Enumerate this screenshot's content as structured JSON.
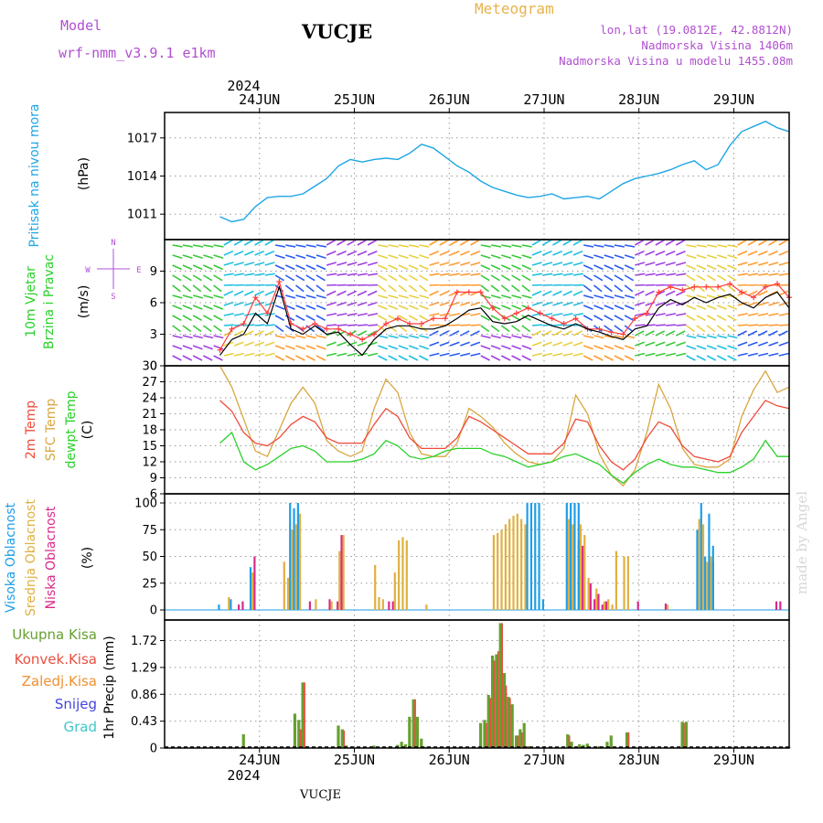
{
  "header": {
    "model_label": "Model",
    "model_name": "wrf-nmm_v3.9.1 e1km",
    "station": "VUCJE",
    "meteogram": "Meteogram",
    "coords": "lon,lat (19.0812E, 42.8812N)",
    "altitude": "Nadmorska Visina 1406m",
    "model_altitude": "Nadmorska Visina u modelu 1455.08m"
  },
  "footer": {
    "station": "VUCJE",
    "credit": "made by Angel"
  },
  "colors": {
    "pressure": "#1ea6e6",
    "wind_speed": "#000000",
    "wind_gust": "#ff3c3c",
    "t2m": "#f04a3a",
    "sfc": "#d9a640",
    "dew": "#2ad12a",
    "cloud_high": "#1e9ee8",
    "cloud_mid": "#e0b040",
    "cloud_low": "#d82a8a",
    "precip_total": "#66a030",
    "precip_conv": "#e85040",
    "precip_strat": "#f09030",
    "snow": "#4444dd",
    "hail": "#40c8c8",
    "purple": "#b04fd0"
  },
  "chart_data": [
    {
      "type": "line",
      "title": "",
      "ylabel": "Pritisak na nivou mora",
      "unit": "(hPa)",
      "days": [
        "24JUN",
        "25JUN",
        "26JUN",
        "27JUN",
        "28JUN",
        "29JUN"
      ],
      "year": "2024",
      "ylim": [
        1009,
        1019
      ],
      "yticks": [
        "1011",
        "1014",
        "1017"
      ],
      "x_hours": [
        0,
        3,
        6,
        9,
        12,
        15,
        18,
        21,
        24,
        27,
        30,
        33,
        36,
        39,
        42,
        45,
        48,
        51,
        54,
        57,
        60,
        63,
        66,
        69,
        72,
        75,
        78,
        81,
        84,
        87,
        90,
        93,
        96,
        99,
        102,
        105,
        108,
        111,
        114,
        117,
        120,
        123,
        126,
        129,
        132,
        135,
        138,
        141,
        144
      ],
      "series": [
        {
          "name": "Pritisak na nivou mora",
          "values": [
            1010.8,
            1010.4,
            1010.6,
            1011.6,
            1012.3,
            1012.4,
            1012.4,
            1012.6,
            1013.2,
            1013.8,
            1014.8,
            1015.3,
            1015.1,
            1015.3,
            1015.4,
            1015.3,
            1015.8,
            1016.5,
            1016.2,
            1015.5,
            1014.8,
            1014.3,
            1013.6,
            1013.1,
            1012.8,
            1012.5,
            1012.3,
            1012.4,
            1012.6,
            1012.2,
            1012.3,
            1012.4,
            1012.2,
            1012.8,
            1013.4,
            1013.8,
            1014.0,
            1014.2,
            1014.5,
            1014.9,
            1015.2,
            1014.5,
            1014.9,
            1016.4,
            1017.5,
            1017.9,
            1018.3,
            1017.8,
            1017.5
          ]
        }
      ]
    },
    {
      "type": "line",
      "title": "",
      "ylabel": "10m Vjetar Brzina i Pravac",
      "unit": "(m/s)",
      "compass": [
        "N",
        "W",
        "E",
        "S"
      ],
      "ylim": [
        0,
        12
      ],
      "yticks": [
        "0",
        "3",
        "6",
        "9"
      ],
      "x_hours": [
        0,
        3,
        6,
        9,
        12,
        15,
        18,
        21,
        24,
        27,
        30,
        33,
        36,
        39,
        42,
        45,
        48,
        51,
        54,
        57,
        60,
        63,
        66,
        69,
        72,
        75,
        78,
        81,
        84,
        87,
        90,
        93,
        96,
        99,
        102,
        105,
        108,
        111,
        114,
        117,
        120,
        123,
        126,
        129,
        132,
        135,
        138,
        141,
        144
      ],
      "series": [
        {
          "name": "wind speed",
          "values": [
            1.0,
            2.5,
            3.0,
            5.0,
            4.0,
            7.5,
            3.5,
            3.0,
            3.8,
            3.0,
            3.2,
            2.0,
            1.0,
            2.5,
            3.5,
            3.8,
            3.8,
            3.5,
            3.5,
            3.8,
            4.5,
            5.3,
            5.5,
            4.2,
            4.0,
            4.2,
            4.8,
            4.3,
            3.8,
            3.5,
            4.0,
            3.5,
            3.2,
            2.8,
            2.5,
            3.5,
            3.8,
            5.5,
            6.3,
            5.8,
            6.5,
            6.0,
            6.5,
            6.8,
            6.0,
            5.5,
            6.5,
            7.0,
            5.5
          ]
        },
        {
          "name": "wind gust",
          "values": [
            1.5,
            3.5,
            4.0,
            6.5,
            5.0,
            8.0,
            4.0,
            3.5,
            4.0,
            3.5,
            3.5,
            3.0,
            2.5,
            3.0,
            4.0,
            4.5,
            4.0,
            4.0,
            4.5,
            4.5,
            7.0,
            7.0,
            7.0,
            5.5,
            4.5,
            5.0,
            5.5,
            5.0,
            4.5,
            4.0,
            4.5,
            3.5,
            3.5,
            3.2,
            3.0,
            4.5,
            5.0,
            7.0,
            7.5,
            7.2,
            7.5,
            7.5,
            7.5,
            7.8,
            7.0,
            6.5,
            7.5,
            7.8,
            6.5
          ]
        }
      ]
    },
    {
      "type": "line",
      "title": "",
      "ylabel_lines": [
        "2m Temp",
        "SFC Temp",
        "dewpt Temp"
      ],
      "unit": "(C)",
      "ylim": [
        6,
        30
      ],
      "yticks": [
        "6",
        "9",
        "12",
        "15",
        "18",
        "21",
        "24",
        "27",
        "30"
      ],
      "x_hours": [
        0,
        3,
        6,
        9,
        12,
        15,
        18,
        21,
        24,
        27,
        30,
        33,
        36,
        39,
        42,
        45,
        48,
        51,
        54,
        57,
        60,
        63,
        66,
        69,
        72,
        75,
        78,
        81,
        84,
        87,
        90,
        93,
        96,
        99,
        102,
        105,
        108,
        111,
        114,
        117,
        120,
        123,
        126,
        129,
        132,
        135,
        138,
        141,
        144
      ],
      "series": [
        {
          "name": "2m Temp",
          "values": [
            23.5,
            21.5,
            17.5,
            15.5,
            15.0,
            16.5,
            19.0,
            20.5,
            19.5,
            16.5,
            15.5,
            15.5,
            15.5,
            19.0,
            22.0,
            20.5,
            16.5,
            14.5,
            14.5,
            14.5,
            16.5,
            20.5,
            19.5,
            18.0,
            16.5,
            15.0,
            13.5,
            13.5,
            13.5,
            15.5,
            20.0,
            19.5,
            15.0,
            12.0,
            10.5,
            12.5,
            16.5,
            19.5,
            18.5,
            15.0,
            13.0,
            12.5,
            12.0,
            13.0,
            17.5,
            20.5,
            23.5,
            22.5,
            22.0
          ]
        },
        {
          "name": "SFC Temp",
          "values": [
            30.0,
            26.0,
            20.0,
            14.0,
            13.0,
            18.0,
            23.0,
            26.0,
            23.0,
            16.0,
            14.0,
            13.0,
            14.0,
            22.0,
            27.5,
            25.0,
            17.5,
            13.5,
            13.0,
            13.0,
            15.5,
            22.0,
            20.5,
            18.5,
            15.5,
            13.5,
            12.0,
            11.5,
            12.0,
            14.5,
            24.5,
            21.0,
            13.5,
            9.5,
            7.5,
            10.5,
            17.5,
            26.5,
            22.0,
            14.5,
            11.5,
            11.0,
            11.0,
            12.5,
            20.5,
            25.5,
            29.0,
            25.0,
            26.0
          ]
        },
        {
          "name": "dewpt Temp",
          "values": [
            15.5,
            17.5,
            12.0,
            10.5,
            11.5,
            13.0,
            14.5,
            15.0,
            14.0,
            12.0,
            12.0,
            12.0,
            12.5,
            13.5,
            16.0,
            15.0,
            13.0,
            12.5,
            13.0,
            14.0,
            14.5,
            14.5,
            14.5,
            13.5,
            13.0,
            12.0,
            11.0,
            11.5,
            12.0,
            13.0,
            13.5,
            12.5,
            11.5,
            9.5,
            8.0,
            10.0,
            11.5,
            12.5,
            11.5,
            11.0,
            11.0,
            10.5,
            10.0,
            10.0,
            11.0,
            12.5,
            16.0,
            13.0,
            13.0
          ]
        }
      ]
    },
    {
      "type": "bar",
      "title": "",
      "ylabel_lines": [
        "Visoka Oblacnost",
        "Srednja Oblacnost",
        "Niska Oblacnost"
      ],
      "unit": "(%)",
      "ylim": [
        0,
        100
      ],
      "yticks": [
        "0",
        "25",
        "50",
        "75",
        "100"
      ],
      "x_hours": [
        0,
        2,
        3,
        4,
        5,
        8,
        14,
        16,
        17,
        18,
        19,
        20,
        22,
        24,
        27,
        28,
        29,
        30,
        31,
        35,
        39,
        40,
        41,
        42,
        43,
        44,
        45,
        46,
        47,
        52,
        69,
        70,
        71,
        72,
        73,
        74,
        75,
        76,
        77,
        78,
        79,
        80,
        81,
        82,
        83,
        84,
        88,
        89,
        90,
        91,
        92,
        93,
        94,
        95,
        96,
        97,
        98,
        99,
        100,
        102,
        103,
        105,
        112,
        113,
        120,
        121,
        122,
        123,
        124,
        125,
        126,
        140,
        141
      ],
      "series": [
        {
          "name": "Visoka Oblacnost",
          "values": [
            5,
            0,
            10,
            0,
            0,
            40,
            0,
            0,
            0,
            100,
            95,
            100,
            0,
            0,
            0,
            0,
            0,
            0,
            0,
            0,
            0,
            0,
            0,
            0,
            0,
            0,
            0,
            0,
            0,
            0,
            0,
            0,
            0,
            0,
            0,
            0,
            0,
            0,
            0,
            100,
            100,
            100,
            100,
            10,
            0,
            0,
            100,
            100,
            100,
            100,
            0,
            0,
            0,
            0,
            0,
            0,
            0,
            0,
            0,
            0,
            0,
            0,
            0,
            0,
            0,
            75,
            100,
            50,
            90,
            60,
            0,
            0,
            0
          ]
        },
        {
          "name": "Srednja Oblacnost",
          "values": [
            0,
            12,
            0,
            0,
            0,
            35,
            0,
            45,
            30,
            75,
            80,
            90,
            0,
            10,
            0,
            8,
            0,
            55,
            70,
            0,
            42,
            12,
            10,
            0,
            0,
            35,
            65,
            68,
            65,
            5,
            70,
            72,
            75,
            80,
            85,
            88,
            90,
            85,
            80,
            0,
            0,
            0,
            0,
            0,
            0,
            0,
            85,
            80,
            0,
            80,
            70,
            30,
            0,
            20,
            0,
            8,
            10,
            5,
            55,
            50,
            50,
            0,
            0,
            5,
            0,
            85,
            80,
            45,
            50,
            0,
            0,
            0,
            0
          ]
        },
        {
          "name": "Niska Oblacnost",
          "values": [
            0,
            0,
            0,
            5,
            8,
            50,
            0,
            0,
            0,
            0,
            0,
            0,
            8,
            0,
            10,
            0,
            8,
            70,
            0,
            0,
            0,
            0,
            0,
            8,
            8,
            0,
            0,
            0,
            0,
            0,
            0,
            0,
            0,
            0,
            0,
            0,
            0,
            0,
            0,
            0,
            0,
            0,
            0,
            0,
            0,
            0,
            10,
            0,
            65,
            60,
            0,
            25,
            10,
            15,
            5,
            8,
            0,
            0,
            0,
            0,
            0,
            8,
            6,
            0,
            8,
            0,
            0,
            0,
            45,
            0,
            0,
            8,
            8
          ]
        }
      ]
    },
    {
      "type": "bar",
      "title": "",
      "legend": [
        "Ukupna Kisa",
        "Konvek.Kisa",
        "Zaledj.Kisa",
        "Snijeg",
        "Grad"
      ],
      "unit": "1hr Precip (mm)",
      "ylim": [
        0,
        2.05
      ],
      "yticks": [
        "0",
        "0.43",
        "0.86",
        "1.29",
        "1.72"
      ],
      "x_hours": [
        6,
        19,
        20,
        21,
        22,
        30,
        31,
        32,
        39,
        43,
        45,
        46,
        47,
        48,
        49,
        50,
        51,
        52,
        66,
        67,
        68,
        69,
        70,
        71,
        72,
        73,
        74,
        75,
        76,
        77,
        78,
        88,
        89,
        91,
        92,
        93,
        96,
        98,
        99,
        103,
        117,
        118,
        144
      ],
      "series": [
        {
          "name": "Ukupna Kisa",
          "values": [
            0.22,
            0.55,
            0.45,
            1.05,
            0.03,
            0.36,
            0.3,
            0.04,
            0.04,
            0.03,
            0.05,
            0.1,
            0.06,
            0.5,
            0.78,
            0.5,
            0.15,
            0.02,
            0.4,
            0.45,
            0.85,
            1.48,
            1.5,
            2.0,
            1.2,
            0.82,
            0.7,
            0.2,
            0.3,
            0.4,
            0.03,
            0.22,
            0.1,
            0.06,
            0.05,
            0.07,
            0.03,
            0.1,
            0.2,
            0.25,
            0.42,
            0.42,
            0.02
          ]
        },
        {
          "name": "Konvek.Kisa",
          "values": [
            0.0,
            0.0,
            0.3,
            1.05,
            0.0,
            0.0,
            0.28,
            0.0,
            0.0,
            0.0,
            0.0,
            0.0,
            0.0,
            0.0,
            0.78,
            0.0,
            0.0,
            0.0,
            0.0,
            0.4,
            0.8,
            1.4,
            1.55,
            2.0,
            1.0,
            0.8,
            0.0,
            0.2,
            0.25,
            0.0,
            0.0,
            0.2,
            0.0,
            0.0,
            0.0,
            0.0,
            0.0,
            0.0,
            0.0,
            0.25,
            0.4,
            0.0,
            0.0
          ]
        }
      ]
    }
  ]
}
